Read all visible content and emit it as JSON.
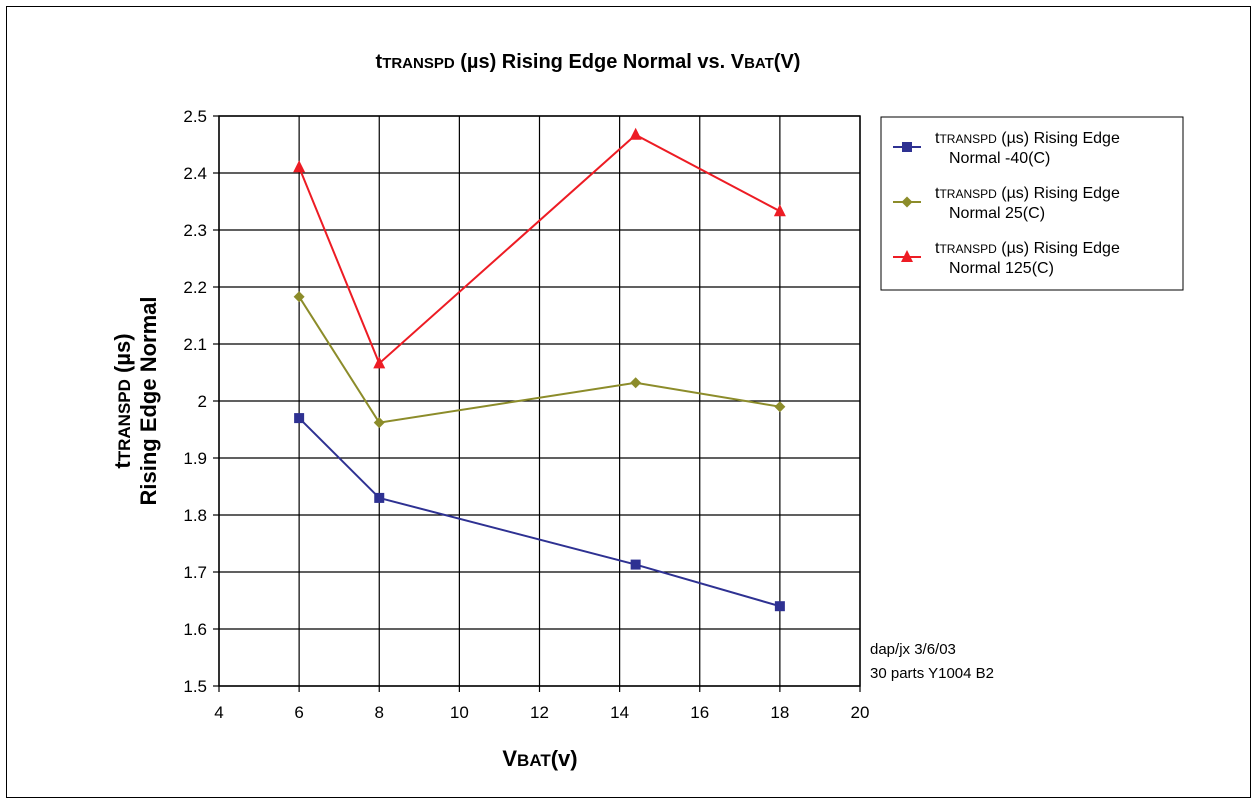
{
  "chart_data": {
    "type": "line",
    "title": {
      "prefix": "t",
      "sub": "TRANSPD",
      "rest": " (µs) Rising Edge Normal vs. V",
      "sub2": "BAT",
      "rest2": "(V)"
    },
    "xlabel": {
      "prefix": "V",
      "sub": "BAT",
      "rest": "(v)"
    },
    "ylabel": {
      "line1_prefix": "t",
      "line1_sub": "TRANSPD",
      "line1_rest": " (µs)",
      "line2": "Rising Edge Normal"
    },
    "xlim": [
      4,
      20
    ],
    "ylim": [
      1.5,
      2.5
    ],
    "x_ticks": [
      4,
      6,
      8,
      10,
      12,
      14,
      16,
      18,
      20
    ],
    "y_ticks": [
      1.5,
      1.6,
      1.7,
      1.8,
      1.9,
      2,
      2.1,
      2.2,
      2.3,
      2.4,
      2.5
    ],
    "x_tick_labels": [
      "4",
      "6",
      "8",
      "10",
      "12",
      "14",
      "16",
      "18",
      "20"
    ],
    "y_tick_labels": [
      "1.5",
      "1.6",
      "1.7",
      "1.8",
      "1.9",
      "2",
      "2.1",
      "2.2",
      "2.3",
      "2.4",
      "2.5"
    ],
    "grid": true,
    "legend_position": "right",
    "series": [
      {
        "name_prefix": "t",
        "name_sub": "TRANSPD",
        "name_rest": " (µs) Rising Edge",
        "name_line2": "Normal -40(C)",
        "color": "#2e3192",
        "marker": "square",
        "x": [
          6,
          8,
          14.4,
          18
        ],
        "y": [
          1.97,
          1.83,
          1.713,
          1.64
        ]
      },
      {
        "name_prefix": "t",
        "name_sub": "TRANSPD",
        "name_rest": " (µs) Rising Edge",
        "name_line2": "Normal 25(C)",
        "color": "#8c8c2a",
        "marker": "diamond",
        "x": [
          6,
          8,
          14.4,
          18
        ],
        "y": [
          2.183,
          1.962,
          2.032,
          1.99
        ]
      },
      {
        "name_prefix": "t",
        "name_sub": "TRANSPD",
        "name_rest": " (µs) Rising Edge",
        "name_line2": "Normal 125(C)",
        "color": "#ed1c24",
        "marker": "triangle",
        "x": [
          6,
          8,
          14.4,
          18
        ],
        "y": [
          2.41,
          2.066,
          2.467,
          2.333
        ]
      }
    ],
    "annotations": [
      "dap/jx 3/6/03",
      "30 parts Y1004 B2"
    ]
  }
}
